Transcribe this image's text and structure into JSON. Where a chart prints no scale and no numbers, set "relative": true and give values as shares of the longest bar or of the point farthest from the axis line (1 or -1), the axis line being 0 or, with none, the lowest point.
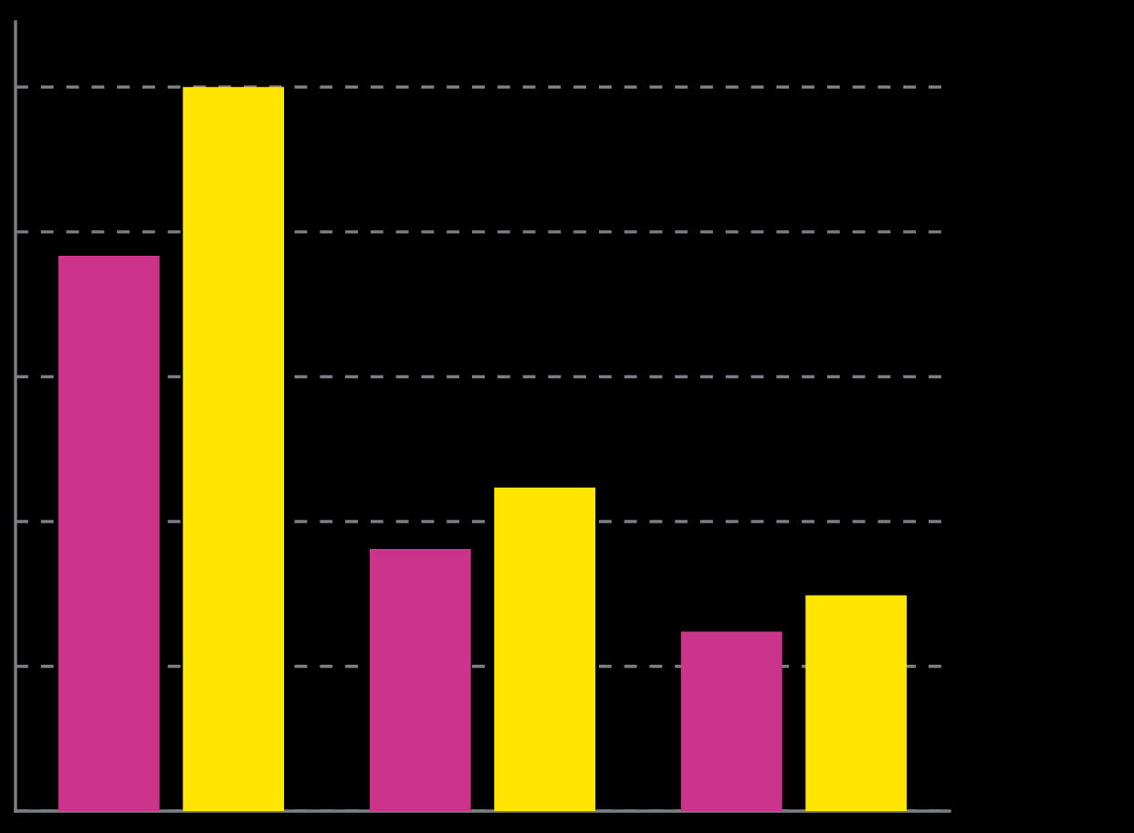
{
  "chart_data": {
    "type": "bar",
    "relative": true,
    "categories": [
      null,
      null,
      null
    ],
    "series": [
      {
        "color": "#cc348c",
        "values": [
          0.767,
          0.362,
          0.248
        ]
      },
      {
        "color": "#ffe600",
        "values": [
          1,
          0.447,
          0.298
        ]
      }
    ],
    "grid": "y"
  }
}
